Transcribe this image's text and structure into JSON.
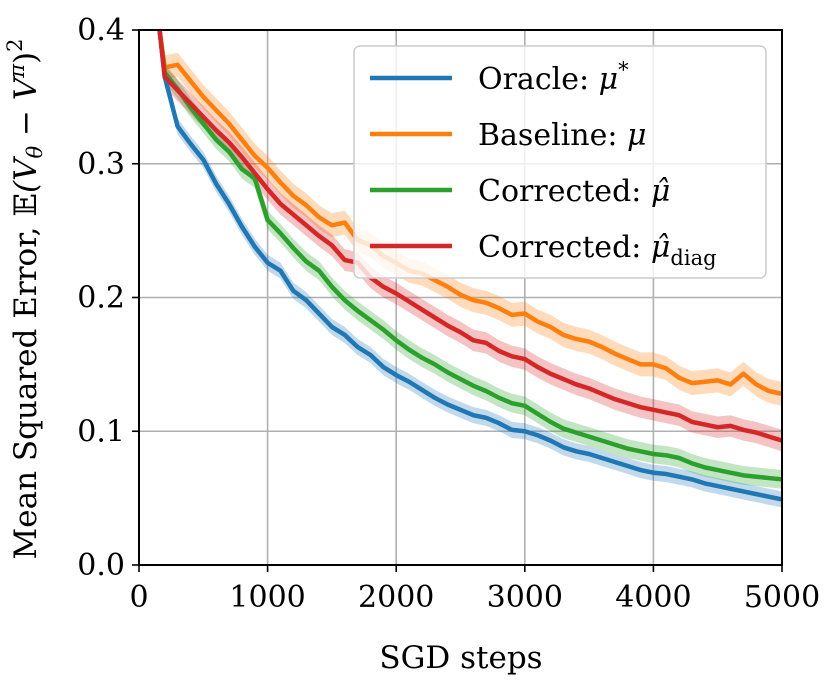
{
  "chart_data": {
    "type": "line",
    "xlabel": "SGD steps",
    "ylabel_parts": {
      "prefix": "Mean Squared Error,",
      "e": "𝔼",
      "open": "(V",
      "sub_theta": "θ",
      "minus": " − V",
      "sup_pi": "π",
      "close": ")",
      "sup2": "2"
    },
    "xlim": [
      0,
      5000
    ],
    "ylim": [
      0,
      0.4
    ],
    "xticks": [
      0,
      1000,
      2000,
      3000,
      4000,
      5000
    ],
    "xtick_labels": [
      "0",
      "1000",
      "2000",
      "3000",
      "4000",
      "5000"
    ],
    "yticks": [
      0.0,
      0.1,
      0.2,
      0.3,
      0.4
    ],
    "ytick_labels": [
      "0.0",
      "0.1",
      "0.2",
      "0.3",
      "0.4"
    ],
    "grid": true,
    "legend_position": "top-right",
    "x": [
      160,
      200,
      300,
      400,
      500,
      600,
      700,
      800,
      900,
      1000,
      1100,
      1200,
      1300,
      1400,
      1500,
      1600,
      1700,
      1800,
      1900,
      2000,
      2100,
      2200,
      2300,
      2400,
      2500,
      2600,
      2700,
      2800,
      2900,
      3000,
      3100,
      3200,
      3300,
      3400,
      3500,
      3600,
      3700,
      3800,
      3900,
      4000,
      4100,
      4200,
      4300,
      4400,
      4500,
      4600,
      4700,
      4800,
      4900,
      5000
    ],
    "series": [
      {
        "name_text": "Oracle: ",
        "name_math": "μ",
        "name_sup": "*",
        "name_sub": "",
        "color": "#1f77b4",
        "band": 0.006,
        "values": [
          0.4,
          0.365,
          0.328,
          0.315,
          0.303,
          0.285,
          0.27,
          0.253,
          0.238,
          0.226,
          0.22,
          0.205,
          0.198,
          0.188,
          0.178,
          0.172,
          0.163,
          0.157,
          0.148,
          0.142,
          0.137,
          0.131,
          0.125,
          0.12,
          0.116,
          0.112,
          0.11,
          0.106,
          0.101,
          0.1,
          0.097,
          0.093,
          0.088,
          0.085,
          0.083,
          0.08,
          0.077,
          0.074,
          0.071,
          0.069,
          0.068,
          0.066,
          0.064,
          0.061,
          0.059,
          0.057,
          0.055,
          0.053,
          0.051,
          0.049
        ]
      },
      {
        "name_text": "Baseline: ",
        "name_math": "μ",
        "name_sup": "",
        "name_sub": "",
        "color": "#ff7f0e",
        "band": 0.009,
        "values": [
          0.4,
          0.372,
          0.374,
          0.362,
          0.35,
          0.34,
          0.33,
          0.318,
          0.306,
          0.297,
          0.286,
          0.276,
          0.269,
          0.26,
          0.254,
          0.256,
          0.243,
          0.239,
          0.231,
          0.226,
          0.22,
          0.218,
          0.213,
          0.208,
          0.202,
          0.198,
          0.196,
          0.192,
          0.187,
          0.188,
          0.182,
          0.178,
          0.172,
          0.169,
          0.167,
          0.163,
          0.158,
          0.154,
          0.15,
          0.15,
          0.147,
          0.14,
          0.136,
          0.137,
          0.138,
          0.135,
          0.143,
          0.135,
          0.13,
          0.128
        ]
      },
      {
        "name_text": "Corrected: ",
        "name_math": "μ̂",
        "name_sup": "",
        "name_sub": "",
        "color": "#2ca02c",
        "band": 0.007,
        "values": [
          0.4,
          0.368,
          0.356,
          0.342,
          0.33,
          0.318,
          0.309,
          0.296,
          0.289,
          0.258,
          0.248,
          0.237,
          0.227,
          0.22,
          0.208,
          0.198,
          0.19,
          0.183,
          0.176,
          0.168,
          0.161,
          0.155,
          0.15,
          0.144,
          0.139,
          0.134,
          0.13,
          0.125,
          0.121,
          0.119,
          0.113,
          0.107,
          0.102,
          0.099,
          0.096,
          0.093,
          0.09,
          0.087,
          0.085,
          0.083,
          0.082,
          0.08,
          0.076,
          0.073,
          0.071,
          0.069,
          0.067,
          0.066,
          0.065,
          0.064
        ]
      },
      {
        "name_text": "Corrected: ",
        "name_math": "μ̂",
        "name_sup": "",
        "name_sub": "diag",
        "color": "#d62728",
        "band": 0.008,
        "values": [
          0.4,
          0.365,
          0.355,
          0.345,
          0.335,
          0.325,
          0.316,
          0.305,
          0.293,
          0.281,
          0.27,
          0.262,
          0.254,
          0.246,
          0.239,
          0.228,
          0.226,
          0.215,
          0.208,
          0.203,
          0.197,
          0.191,
          0.185,
          0.179,
          0.174,
          0.168,
          0.166,
          0.16,
          0.156,
          0.154,
          0.148,
          0.143,
          0.139,
          0.135,
          0.132,
          0.128,
          0.124,
          0.121,
          0.118,
          0.116,
          0.114,
          0.112,
          0.107,
          0.105,
          0.103,
          0.104,
          0.101,
          0.099,
          0.096,
          0.093
        ]
      }
    ]
  }
}
